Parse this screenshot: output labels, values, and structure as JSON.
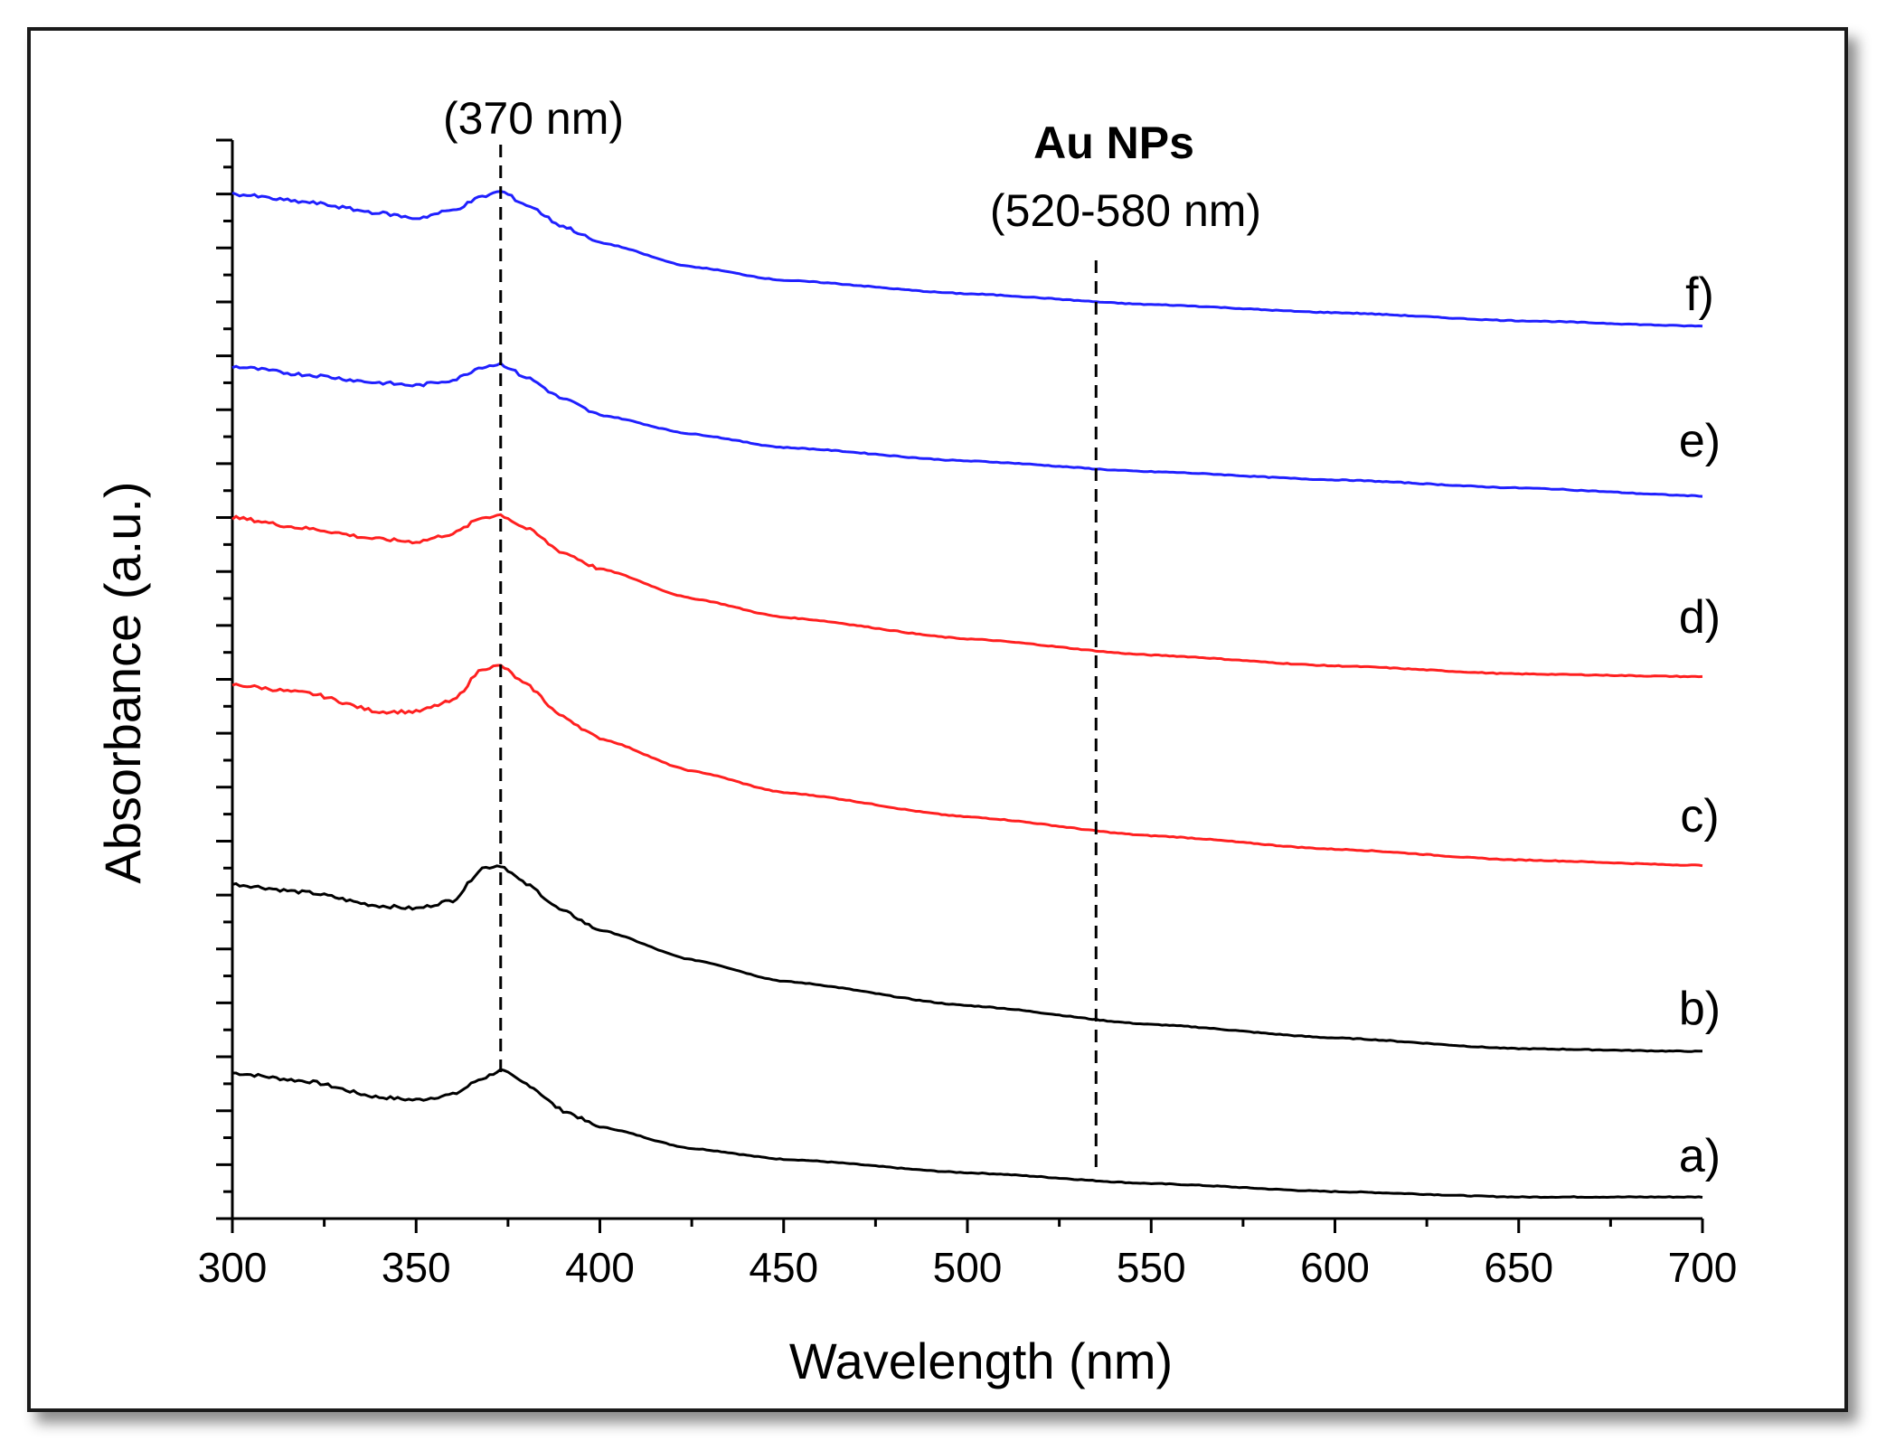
{
  "chart_data": {
    "type": "line",
    "title": "",
    "xlabel": "Wavelength (nm)",
    "ylabel": "Absorbance (a.u.)",
    "xlim": [
      300,
      700
    ],
    "ylim": [
      0,
      20
    ],
    "xticks": [
      "300",
      "350",
      "400",
      "450",
      "500",
      "550",
      "600",
      "650",
      "700"
    ],
    "y_tick_labels_shown": false,
    "grid": false,
    "annotations": [
      {
        "id": "zno-peak",
        "text": "(370 nm)",
        "bold": false,
        "line_x": 373
      },
      {
        "id": "au-nps",
        "text": "Au NPs",
        "bold": true
      },
      {
        "id": "au-range",
        "text": "(520-580 nm)",
        "bold": false,
        "line_x": 535
      }
    ],
    "series": [
      {
        "name": "a)",
        "color": "#000000",
        "points": [
          [
            300,
            2.7
          ],
          [
            320,
            2.55
          ],
          [
            340,
            2.25
          ],
          [
            350,
            2.2
          ],
          [
            360,
            2.3
          ],
          [
            368,
            2.6
          ],
          [
            373,
            2.75
          ],
          [
            380,
            2.5
          ],
          [
            390,
            2.0
          ],
          [
            400,
            1.7
          ],
          [
            425,
            1.3
          ],
          [
            450,
            1.1
          ],
          [
            500,
            0.85
          ],
          [
            550,
            0.65
          ],
          [
            600,
            0.5
          ],
          [
            650,
            0.4
          ],
          [
            700,
            0.4
          ]
        ]
      },
      {
        "name": "b)",
        "color": "#000000",
        "points": [
          [
            300,
            6.2
          ],
          [
            320,
            6.05
          ],
          [
            340,
            5.8
          ],
          [
            350,
            5.75
          ],
          [
            360,
            5.9
          ],
          [
            368,
            6.5
          ],
          [
            373,
            6.55
          ],
          [
            380,
            6.2
          ],
          [
            390,
            5.7
          ],
          [
            400,
            5.35
          ],
          [
            425,
            4.8
          ],
          [
            450,
            4.4
          ],
          [
            500,
            3.95
          ],
          [
            550,
            3.6
          ],
          [
            600,
            3.35
          ],
          [
            650,
            3.15
          ],
          [
            700,
            3.1
          ]
        ]
      },
      {
        "name": "c)",
        "color": "#ff2020",
        "points": [
          [
            300,
            9.9
          ],
          [
            320,
            9.75
          ],
          [
            340,
            9.4
          ],
          [
            350,
            9.4
          ],
          [
            360,
            9.6
          ],
          [
            368,
            10.2
          ],
          [
            373,
            10.25
          ],
          [
            380,
            9.9
          ],
          [
            390,
            9.3
          ],
          [
            400,
            8.9
          ],
          [
            425,
            8.3
          ],
          [
            450,
            7.9
          ],
          [
            500,
            7.45
          ],
          [
            550,
            7.1
          ],
          [
            600,
            6.85
          ],
          [
            650,
            6.65
          ],
          [
            700,
            6.55
          ]
        ]
      },
      {
        "name": "d)",
        "color": "#ff2020",
        "points": [
          [
            300,
            13.0
          ],
          [
            320,
            12.8
          ],
          [
            340,
            12.6
          ],
          [
            350,
            12.55
          ],
          [
            360,
            12.7
          ],
          [
            368,
            13.0
          ],
          [
            373,
            13.05
          ],
          [
            380,
            12.8
          ],
          [
            390,
            12.35
          ],
          [
            400,
            12.05
          ],
          [
            425,
            11.5
          ],
          [
            450,
            11.15
          ],
          [
            500,
            10.75
          ],
          [
            550,
            10.45
          ],
          [
            600,
            10.25
          ],
          [
            650,
            10.1
          ],
          [
            700,
            10.05
          ]
        ]
      },
      {
        "name": "e)",
        "color": "#2020ff",
        "points": [
          [
            300,
            15.8
          ],
          [
            320,
            15.65
          ],
          [
            340,
            15.5
          ],
          [
            350,
            15.45
          ],
          [
            360,
            15.55
          ],
          [
            368,
            15.8
          ],
          [
            373,
            15.85
          ],
          [
            380,
            15.6
          ],
          [
            390,
            15.2
          ],
          [
            400,
            14.9
          ],
          [
            425,
            14.55
          ],
          [
            450,
            14.3
          ],
          [
            500,
            14.05
          ],
          [
            550,
            13.85
          ],
          [
            600,
            13.7
          ],
          [
            650,
            13.55
          ],
          [
            700,
            13.4
          ]
        ]
      },
      {
        "name": "f)",
        "color": "#2020ff",
        "points": [
          [
            300,
            19.0
          ],
          [
            320,
            18.85
          ],
          [
            340,
            18.65
          ],
          [
            350,
            18.55
          ],
          [
            360,
            18.7
          ],
          [
            368,
            18.95
          ],
          [
            373,
            19.05
          ],
          [
            380,
            18.8
          ],
          [
            390,
            18.4
          ],
          [
            400,
            18.1
          ],
          [
            425,
            17.65
          ],
          [
            450,
            17.4
          ],
          [
            500,
            17.15
          ],
          [
            550,
            16.95
          ],
          [
            600,
            16.8
          ],
          [
            650,
            16.65
          ],
          [
            700,
            16.55
          ]
        ]
      }
    ]
  }
}
